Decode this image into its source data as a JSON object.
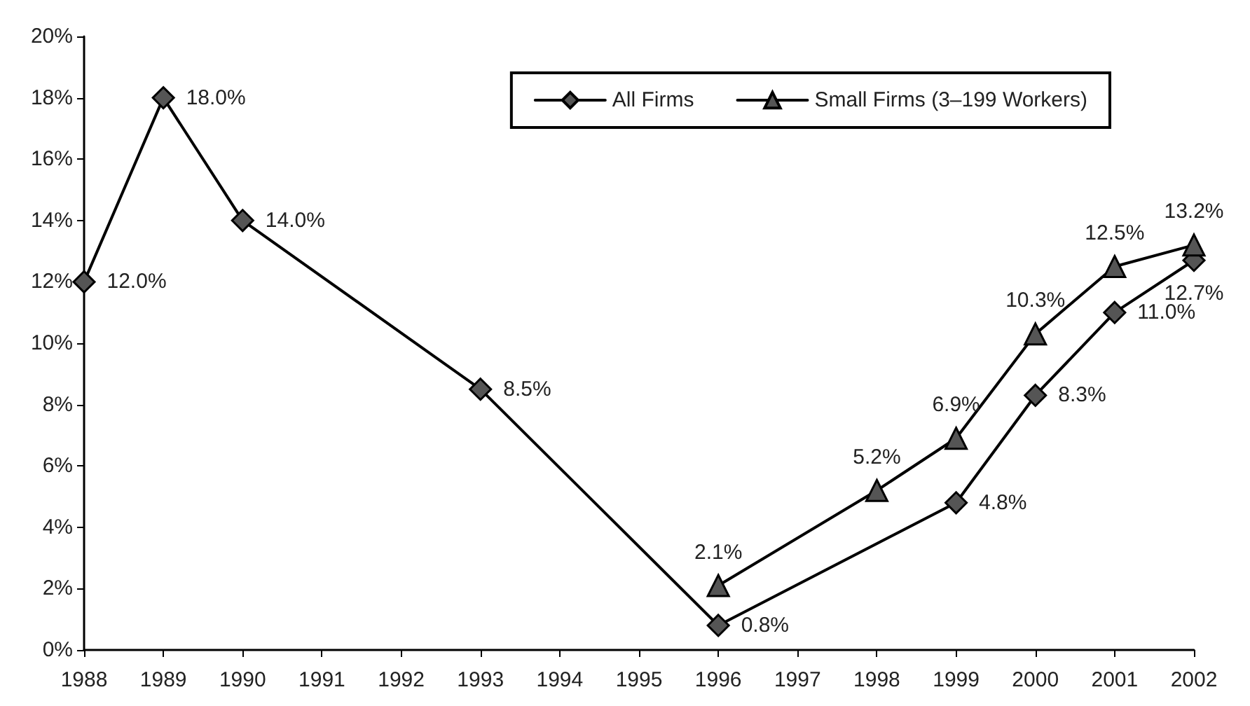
{
  "chart_data": {
    "type": "line",
    "categories": [
      "1988",
      "1989",
      "1990",
      "1991",
      "1992",
      "1993",
      "1994",
      "1995",
      "1996",
      "1997",
      "1998",
      "1999",
      "2000",
      "2001",
      "2002"
    ],
    "series": [
      {
        "name": "All Firms",
        "color": "#000000",
        "marker": "diamond",
        "values": [
          12,
          18,
          14,
          null,
          null,
          8.5,
          null,
          null,
          0.8,
          null,
          null,
          4.8,
          8.3,
          11,
          12.7
        ],
        "value_labels": [
          "12.0%",
          "18.0%",
          "14.0%",
          null,
          null,
          "8.5%",
          null,
          null,
          "0.8%",
          null,
          null,
          "4.8%",
          "8.3%",
          "11.0%",
          "12.7%"
        ]
      },
      {
        "name": "Small Firms (3–199 Workers)",
        "color": "#000000",
        "marker": "triangle",
        "values": [
          null,
          null,
          null,
          null,
          null,
          null,
          null,
          null,
          2.1,
          null,
          5.2,
          6.9,
          10.3,
          12.5,
          13.2
        ],
        "value_labels": [
          null,
          null,
          null,
          null,
          null,
          null,
          null,
          null,
          "2.1%",
          null,
          "5.2%",
          "6.9%",
          "10.3%",
          "12.5%",
          "13.2%"
        ]
      }
    ],
    "ylim": [
      0,
      20
    ],
    "yticks": [
      {
        "value": 0,
        "label": "0%"
      },
      {
        "value": 2,
        "label": "2%"
      },
      {
        "value": 4,
        "label": "4%"
      },
      {
        "value": 6,
        "label": "6%"
      },
      {
        "value": 8,
        "label": "8%"
      },
      {
        "value": 10,
        "label": "10%"
      },
      {
        "value": 12,
        "label": "12%"
      },
      {
        "value": 14,
        "label": "14%"
      },
      {
        "value": 16,
        "label": "16%"
      },
      {
        "value": 18,
        "label": "18%"
      },
      {
        "value": 20,
        "label": "20%"
      }
    ],
    "grid": false,
    "legend": "top right",
    "line_style": "solid"
  }
}
